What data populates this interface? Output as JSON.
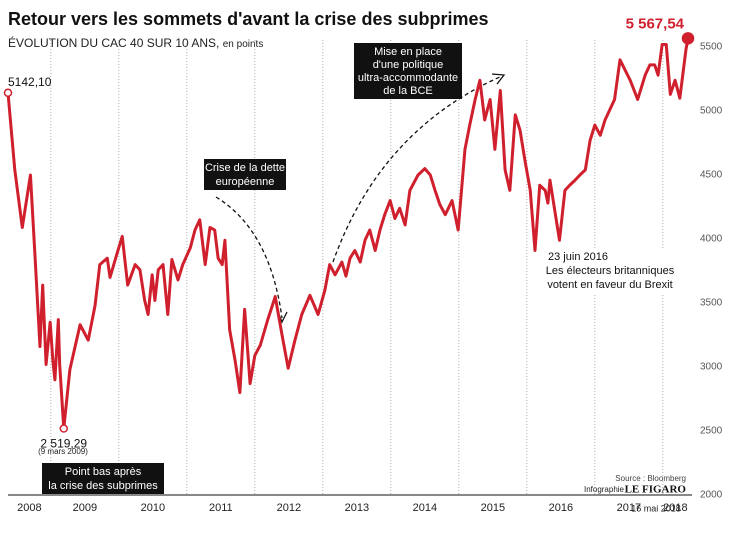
{
  "chart_data": {
    "type": "line",
    "title": "Retour vers les sommets d'avant la crise des subprimes",
    "subtitle": "ÉVOLUTION DU CAC 40 SUR 10 ANS,",
    "unit": "en points",
    "x": [
      2008.37,
      2008.47,
      2008.58,
      2008.7,
      2008.77,
      2008.84,
      2008.88,
      2008.93,
      2008.99,
      2009.03,
      2009.06,
      2009.11,
      2009.13,
      2009.19,
      2009.28,
      2009.43,
      2009.55,
      2009.65,
      2009.72,
      2009.83,
      2009.87,
      2009.97,
      2010.05,
      2010.13,
      2010.24,
      2010.31,
      2010.38,
      2010.43,
      2010.49,
      2010.53,
      2010.58,
      2010.65,
      2010.72,
      2010.78,
      2010.87,
      2010.94,
      2011.05,
      2011.12,
      2011.19,
      2011.27,
      2011.34,
      2011.41,
      2011.46,
      2011.52,
      2011.56,
      2011.63,
      2011.71,
      2011.78,
      2011.85,
      2011.93,
      2012.0,
      2012.08,
      2012.19,
      2012.3,
      2012.4,
      2012.49,
      2012.59,
      2012.69,
      2012.81,
      2012.93,
      2013.03,
      2013.1,
      2013.18,
      2013.28,
      2013.34,
      2013.4,
      2013.47,
      2013.55,
      2013.62,
      2013.69,
      2013.77,
      2013.84,
      2013.91,
      2013.99,
      2014.06,
      2014.13,
      2014.21,
      2014.28,
      2014.4,
      2014.5,
      2014.58,
      2014.65,
      2014.72,
      2014.8,
      2014.9,
      2014.99,
      2015.09,
      2015.16,
      2015.24,
      2015.31,
      2015.38,
      2015.46,
      2015.53,
      2015.61,
      2015.68,
      2015.75,
      2015.83,
      2015.9,
      2015.97,
      2016.05,
      2016.12,
      2016.19,
      2016.27,
      2016.31,
      2016.34,
      2016.48,
      2016.56,
      2016.63,
      2016.71,
      2016.78,
      2016.86,
      2016.93,
      2017.0,
      2017.08,
      2017.15,
      2017.22,
      2017.29,
      2017.37,
      2017.52,
      2017.63,
      2017.74,
      2017.81,
      2017.88,
      2017.93,
      2017.99,
      2018.05,
      2018.11,
      2018.18,
      2018.25,
      2018.34,
      2018.37
    ],
    "series": [
      {
        "name": "CAC 40",
        "color": "#d0202e",
        "values": [
          5142.1,
          4540,
          4090,
          4500,
          3840,
          3160,
          3640,
          3020,
          3350,
          3050,
          2900,
          3370,
          3020,
          2519.29,
          2980,
          3330,
          3210,
          3480,
          3800,
          3850,
          3700,
          3880,
          4020,
          3640,
          3800,
          3760,
          3520,
          3410,
          3720,
          3520,
          3760,
          3800,
          3410,
          3840,
          3680,
          3800,
          3930,
          4070,
          4150,
          3800,
          4090,
          4070,
          3850,
          3800,
          3990,
          3290,
          3050,
          2800,
          3450,
          2870,
          3090,
          3170,
          3370,
          3550,
          3250,
          2990,
          3210,
          3410,
          3560,
          3410,
          3600,
          3800,
          3720,
          3820,
          3710,
          3850,
          3910,
          3820,
          3990,
          4070,
          3910,
          4070,
          4190,
          4300,
          4160,
          4240,
          4110,
          4380,
          4500,
          4550,
          4500,
          4380,
          4270,
          4190,
          4300,
          4070,
          4700,
          4890,
          5090,
          5240,
          4930,
          5090,
          4700,
          5160,
          4540,
          4380,
          4970,
          4850,
          4620,
          4380,
          3910,
          4420,
          4380,
          4280,
          4460,
          3990,
          4380,
          4420,
          4460,
          4500,
          4540,
          4770,
          4890,
          4810,
          4930,
          5010,
          5090,
          5400,
          5240,
          5090,
          5280,
          5360,
          5360,
          5280,
          5520,
          5520,
          5130,
          5240,
          5100,
          5480,
          5567.54
        ],
        "value_labels": [
          "5142,10",
          null,
          null,
          null,
          null,
          null,
          null,
          null,
          null,
          null,
          null,
          null,
          null,
          "2 519,29",
          null,
          null,
          null,
          null,
          null,
          null,
          null,
          null,
          null,
          null,
          null,
          null,
          null,
          null,
          null,
          null,
          null,
          null,
          null,
          null,
          null,
          null,
          null,
          null,
          null,
          null,
          null,
          null,
          null,
          null,
          null,
          null,
          null,
          null,
          null,
          null,
          null,
          null,
          null,
          null,
          null,
          null,
          null,
          null,
          null,
          null,
          null,
          null,
          null,
          null,
          null,
          null,
          null,
          null,
          null,
          null,
          null,
          null,
          null,
          null,
          null,
          null,
          null,
          null,
          null,
          null,
          null,
          null,
          null,
          null,
          null,
          null,
          null,
          null,
          null,
          null,
          null,
          null,
          null,
          null,
          null,
          null,
          null,
          null,
          null,
          null,
          null,
          null,
          null,
          null,
          null,
          null,
          null,
          null,
          null,
          null,
          null,
          null,
          null,
          null,
          null,
          null,
          null,
          null,
          null,
          null,
          null,
          null,
          null,
          null,
          null,
          null,
          null,
          null,
          null,
          null,
          "5 567,54"
        ]
      }
    ],
    "xlim": [
      2008.37,
      2018.37
    ],
    "xticks": [
      2008,
      2009,
      2010,
      2011,
      2012,
      2013,
      2014,
      2015,
      2016,
      2017,
      2018
    ],
    "ylim": [
      2000,
      5500
    ],
    "yticks": [
      2000,
      2500,
      3000,
      3500,
      4000,
      4500,
      5000,
      5500
    ],
    "annotations": {
      "low_date": "(9 mars 2009)",
      "low_note": [
        "Point bas après",
        "la crise des subprimes"
      ],
      "debt_crisis": [
        "Crise de la dette",
        "européenne"
      ],
      "ecb": [
        "Mise en place",
        "d'une politique",
        "ultra-accommodante",
        "de la BCE"
      ],
      "brexit": [
        "23 juin 2016",
        "Les électeurs britanniques",
        "votent en faveur du Brexit"
      ],
      "last_date": "16 mai 2018"
    },
    "source": "Source : Bloomberg",
    "credit": "Infographie",
    "brand": "LE FIGARO"
  }
}
